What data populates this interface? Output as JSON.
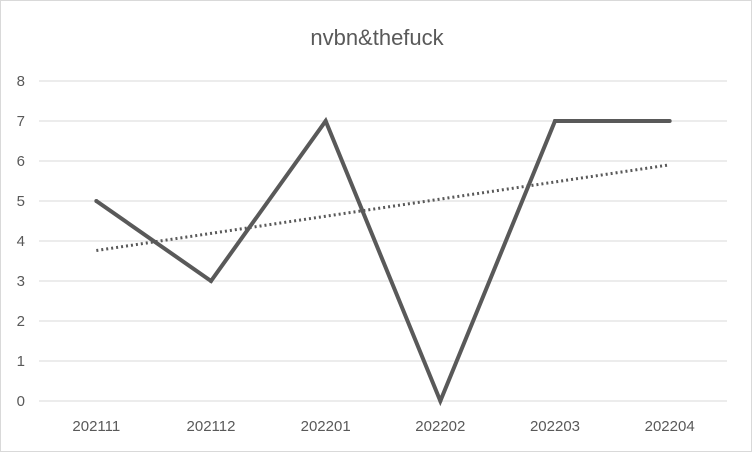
{
  "chart_data": {
    "type": "line",
    "title": "nvbn&thefuck",
    "categories": [
      "202111",
      "202112",
      "202201",
      "202202",
      "202203",
      "202204"
    ],
    "series": [
      {
        "values": [
          5,
          3,
          7,
          0,
          7,
          7
        ],
        "color": "#595959"
      }
    ],
    "trendline": {
      "kind": "linear",
      "style": "dotted",
      "color": "#595959"
    },
    "ylim": [
      0,
      8
    ],
    "yticks": [
      0,
      1,
      2,
      3,
      4,
      5,
      6,
      7,
      8
    ],
    "grid": true,
    "legend": "none"
  }
}
